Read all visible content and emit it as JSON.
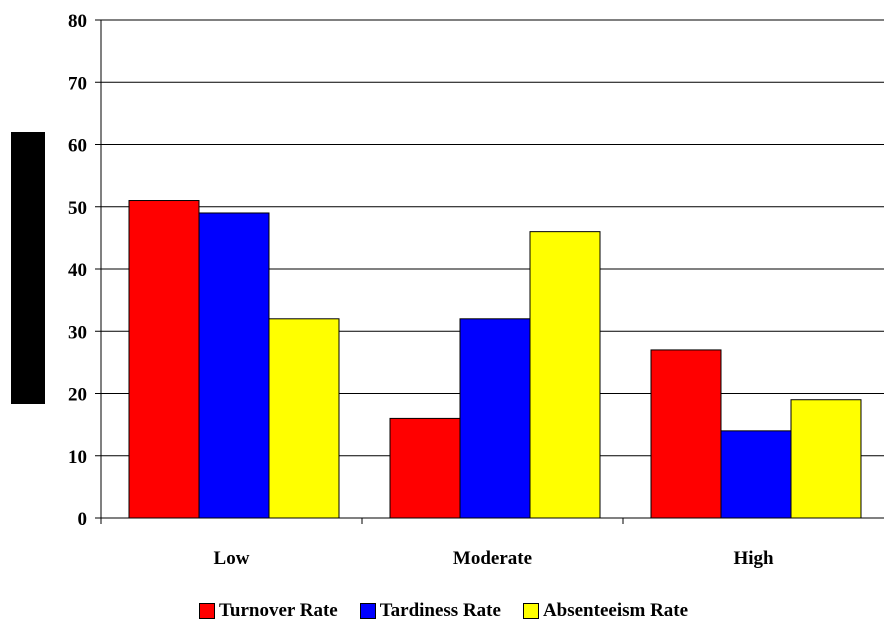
{
  "chart_data": {
    "type": "bar",
    "title": "",
    "xlabel": "",
    "ylabel": "",
    "categories": [
      "Low",
      "Moderate",
      "High"
    ],
    "series": [
      {
        "name": "Turnover Rate",
        "color": "#ff0000",
        "values": [
          51,
          16,
          27
        ]
      },
      {
        "name": "Tardiness Rate",
        "color": "#0000ff",
        "values": [
          49,
          32,
          14
        ]
      },
      {
        "name": "Absenteeism Rate",
        "color": "#ffff00",
        "values": [
          32,
          46,
          19
        ]
      }
    ],
    "ylim": [
      0,
      80
    ],
    "yticks": [
      0,
      10,
      20,
      30,
      40,
      50,
      60,
      70,
      80
    ],
    "grid": true,
    "legend_position": "bottom"
  }
}
